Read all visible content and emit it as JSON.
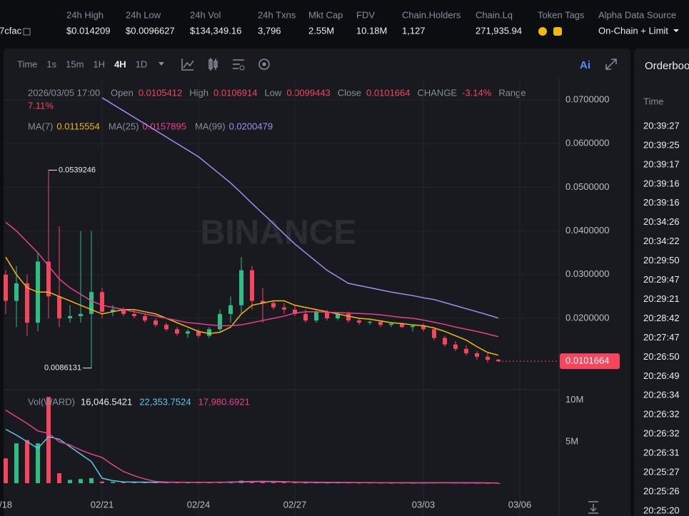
{
  "header": {
    "contract": "7cfac",
    "stats": [
      {
        "label": "24h High",
        "value": "$0.014209"
      },
      {
        "label": "24h Low",
        "value": "$0.0096627"
      },
      {
        "label": "24h Vol",
        "value": "$134,349.16"
      },
      {
        "label": "24h Txns",
        "value": "3,796"
      },
      {
        "label": "Mkt Cap",
        "value": "2.55M"
      },
      {
        "label": "FDV",
        "value": "10.18M"
      },
      {
        "label": "Chain.Holders",
        "value": "1,127"
      },
      {
        "label": "Chain.Lq",
        "value": "271,935.94"
      }
    ],
    "token_tags": "Token Tags",
    "source": {
      "label": "Alpha Data Source",
      "value": "On-Chain + Limit"
    }
  },
  "toolbar": {
    "intervals": [
      "Time",
      "1s",
      "15m",
      "1H",
      "4H",
      "1D"
    ],
    "active": 4,
    "ai": "Ai"
  },
  "ohlc_info": {
    "time": "2026/03/05 17:00",
    "items": [
      {
        "label": "Open",
        "value": "0.0105412"
      },
      {
        "label": "High",
        "value": "0.0106914"
      },
      {
        "label": "Low",
        "value": "0.0099443"
      },
      {
        "label": "Close",
        "value": "0.0101664"
      },
      {
        "label": "CHANGE",
        "value": "-3.14%"
      },
      {
        "label": "Range",
        "value": "7.11%"
      }
    ]
  },
  "ma_info": [
    {
      "label": "MA(7)",
      "value": "0.0115554",
      "color": "#f0b90b"
    },
    {
      "label": "MA(25)",
      "value": "0.0157895",
      "color": "#e8418c"
    },
    {
      "label": "MA(99)",
      "value": "0.0200479",
      "color": "#a48cf2"
    }
  ],
  "watermark": "BINANCE",
  "chart": {
    "type": "candlestick",
    "categories": [
      "/18",
      null,
      null,
      null,
      null,
      null,
      null,
      null,
      null,
      "02/21",
      null,
      null,
      null,
      null,
      null,
      null,
      null,
      null,
      "02/24",
      null,
      null,
      null,
      null,
      null,
      null,
      null,
      null,
      "02/27",
      null,
      null,
      null,
      null,
      null,
      null,
      null,
      null,
      null,
      null,
      null,
      "03/03",
      null,
      null,
      null,
      null,
      null,
      null,
      null,
      null,
      "03/06"
    ],
    "open": [
      0.03,
      0.024,
      0.028,
      0.019,
      0.033,
      0.025,
      0.02,
      0.0205,
      0.021,
      0.026,
      0.0215,
      0.022,
      0.021,
      0.0205,
      0.0195,
      0.0185,
      0.0175,
      0.0165,
      0.017,
      0.016,
      0.0175,
      0.021,
      0.023,
      0.031,
      0.024,
      0.0235,
      0.0225,
      0.022,
      0.021,
      0.0195,
      0.0215,
      0.02,
      0.021,
      0.0195,
      0.019,
      0.0192,
      0.0185,
      0.0188,
      0.018,
      0.0183,
      0.0175,
      0.0155,
      0.014,
      0.013,
      0.012,
      0.0112,
      0.0105412,
      null,
      null
    ],
    "high": [
      0.031,
      0.032,
      0.03,
      0.035,
      0.0539246,
      0.041,
      0.023,
      0.04,
      0.04,
      0.027,
      0.023,
      0.0225,
      0.022,
      0.021,
      0.02,
      0.019,
      0.018,
      0.0175,
      0.0175,
      0.018,
      0.022,
      0.025,
      0.034,
      0.032,
      0.027,
      0.024,
      0.0235,
      0.023,
      0.022,
      0.022,
      0.022,
      0.0215,
      0.0215,
      0.02,
      0.0195,
      0.0195,
      0.019,
      0.019,
      0.0185,
      0.0188,
      0.018,
      0.016,
      0.0148,
      0.0138,
      0.0125,
      0.012,
      0.0106914,
      null,
      null
    ],
    "low": [
      0.021,
      0.018,
      0.016,
      0.017,
      0.02,
      0.018,
      0.019,
      0.019,
      0.0086131,
      0.02,
      0.0205,
      0.0205,
      0.02,
      0.019,
      0.018,
      0.017,
      0.016,
      0.0155,
      0.0155,
      0.0155,
      0.017,
      0.019,
      0.021,
      0.022,
      0.019,
      0.022,
      0.021,
      0.0205,
      0.019,
      0.019,
      0.0195,
      0.0195,
      0.019,
      0.0185,
      0.0185,
      0.018,
      0.018,
      0.0178,
      0.017,
      0.017,
      0.015,
      0.0135,
      0.0125,
      0.0115,
      0.0105,
      0.0099,
      0.0099443,
      null,
      null
    ],
    "close": [
      0.024,
      0.028,
      0.019,
      0.033,
      0.025,
      0.02,
      0.0205,
      0.021,
      0.026,
      0.0215,
      0.022,
      0.021,
      0.0205,
      0.0195,
      0.0185,
      0.0175,
      0.0165,
      0.017,
      0.016,
      0.0175,
      0.021,
      0.023,
      0.031,
      0.024,
      0.0235,
      0.0225,
      0.022,
      0.021,
      0.0195,
      0.0215,
      0.02,
      0.021,
      0.0195,
      0.019,
      0.0192,
      0.0185,
      0.0188,
      0.018,
      0.0183,
      0.0175,
      0.0155,
      0.014,
      0.013,
      0.012,
      0.0112,
      0.0105,
      0.0101664,
      null,
      null
    ],
    "up_color": "#2ebd85",
    "down_color": "#f6465d",
    "ylim": [
      0.00366,
      0.07327
    ],
    "yticks": [
      {
        "value": 0.07,
        "label": "0.0700000"
      },
      {
        "value": 0.06,
        "label": "0.0600000"
      },
      {
        "value": 0.05,
        "label": "0.0500000"
      },
      {
        "value": 0.04,
        "label": "0.0400000"
      },
      {
        "value": 0.03,
        "label": "0.0300000"
      },
      {
        "value": 0.02,
        "label": "0.0200000"
      }
    ],
    "price_tag": "0.0101664",
    "high_marker": "0.0539246",
    "low_marker": "0.0086131",
    "ma": [
      {
        "color": "#f0b90b",
        "values": [
          0.034,
          0.03,
          0.027,
          0.026,
          0.026,
          0.025,
          0.024,
          0.023,
          0.022,
          0.021,
          0.0215,
          0.022,
          0.022,
          0.0215,
          0.021,
          0.02,
          0.019,
          0.018,
          0.017,
          0.0165,
          0.0168,
          0.018,
          0.021,
          0.023,
          0.0235,
          0.024,
          0.024,
          0.023,
          0.0225,
          0.022,
          0.0215,
          0.021,
          0.0205,
          0.02,
          0.0198,
          0.0194,
          0.019,
          0.0188,
          0.0185,
          0.0183,
          0.0178,
          0.017,
          0.016,
          0.015,
          0.0135,
          0.0122,
          0.0115554,
          null,
          null
        ]
      },
      {
        "color": "#e8418c",
        "values": [
          0.042,
          0.04,
          0.0375,
          0.035,
          0.032,
          0.029,
          0.027,
          0.0255,
          0.024,
          0.023,
          0.0225,
          0.022,
          0.0215,
          0.021,
          0.0205,
          0.02,
          0.0195,
          0.019,
          0.0188,
          0.0185,
          0.0183,
          0.0183,
          0.0185,
          0.019,
          0.0195,
          0.02,
          0.0205,
          0.0212,
          0.0215,
          0.0215,
          0.0214,
          0.0213,
          0.0212,
          0.0211,
          0.021,
          0.0208,
          0.0205,
          0.0202,
          0.02,
          0.0196,
          0.0191,
          0.0186,
          0.018,
          0.0175,
          0.017,
          0.0164,
          0.0157895,
          null,
          null
        ]
      },
      {
        "color": "#a48cf2",
        "values": [
          null,
          null,
          null,
          null,
          null,
          null,
          null,
          null,
          null,
          0.0705,
          0.069,
          0.0675,
          0.066,
          0.0645,
          0.063,
          0.0615,
          0.06,
          0.0585,
          0.057,
          0.055,
          0.053,
          0.051,
          0.0487,
          0.0463,
          0.044,
          0.0417,
          0.0393,
          0.037,
          0.035,
          0.033,
          0.031,
          0.0295,
          0.028,
          0.0275,
          0.027,
          0.0265,
          0.026,
          0.0256,
          0.0252,
          0.0247,
          0.0243,
          0.0236,
          0.0229,
          0.0222,
          0.0215,
          0.0208,
          0.0200479,
          null,
          null
        ]
      }
    ],
    "volume": {
      "label": "Vol(WARD)",
      "legend": [
        "16,046.5421",
        "22,353.7524",
        "17,980.6921"
      ],
      "legend_colors": [
        "#eaecef",
        "#5bc8e8",
        "#e8418c"
      ],
      "values": [
        3000000,
        4800000,
        5200000,
        4800000,
        10400000,
        1200000,
        400000,
        500000,
        600000,
        200000,
        150000,
        120000,
        100000,
        110000,
        90000,
        100000,
        120000,
        80000,
        90000,
        100000,
        150000,
        200000,
        300000,
        250000,
        150000,
        100000,
        90000,
        80000,
        70000,
        80000,
        60000,
        70000,
        60000,
        50000,
        60000,
        50000,
        40000,
        50000,
        40000,
        50000,
        60000,
        70000,
        50000,
        40000,
        30000,
        20000,
        16046.5421,
        null,
        null
      ],
      "ylim": [
        0,
        10500000
      ],
      "yticks": [
        {
          "value": 10000000,
          "label": "10M"
        },
        {
          "value": 5000000,
          "label": "5M"
        }
      ],
      "ma": [
        {
          "color": "#5bc8e8",
          "values": [
            6500000,
            5800000,
            5000000,
            4200000,
            5600000,
            5300000,
            4400000,
            3500000,
            2600000,
            600000,
            300000,
            150000,
            130000,
            120000,
            110000,
            110000,
            110000,
            100000,
            100000,
            100000,
            110000,
            130000,
            170000,
            200000,
            210000,
            200000,
            180000,
            130000,
            100000,
            90000,
            80000,
            70000,
            70000,
            60000,
            60000,
            55000,
            52000,
            50000,
            48000,
            47000,
            50000,
            54000,
            54000,
            50000,
            45000,
            30000,
            22353.7524,
            null,
            null
          ]
        },
        {
          "color": "#e8418c",
          "values": [
            8800000,
            8000000,
            7200000,
            6300000,
            6000000,
            5000000,
            4600000,
            4000000,
            3500000,
            3100000,
            2200000,
            1400000,
            900000,
            500000,
            200000,
            140000,
            120000,
            110000,
            110000,
            105000,
            110000,
            120000,
            140000,
            160000,
            170000,
            160000,
            150000,
            140000,
            130000,
            120000,
            110000,
            100000,
            90000,
            80000,
            70000,
            65000,
            60000,
            58000,
            55000,
            52000,
            50000,
            50000,
            48000,
            46000,
            42000,
            35000,
            17980.6921,
            null,
            null
          ]
        }
      ]
    }
  },
  "orderbook": {
    "title": "Orderboo",
    "column": "Time",
    "times": [
      "20:39:27",
      "20:39:25",
      "20:39:17",
      "20:39:16",
      "20:39:16",
      "20:34:26",
      "20:34:22",
      "20:29:50",
      "20:29:47",
      "20:29:21",
      "20:28:42",
      "20:27:47",
      "20:26:50",
      "20:26:49",
      "20:26:34",
      "20:26:32",
      "20:26:32",
      "20:26:31",
      "20:25:27",
      "20:25:26",
      "20:25:20"
    ]
  }
}
